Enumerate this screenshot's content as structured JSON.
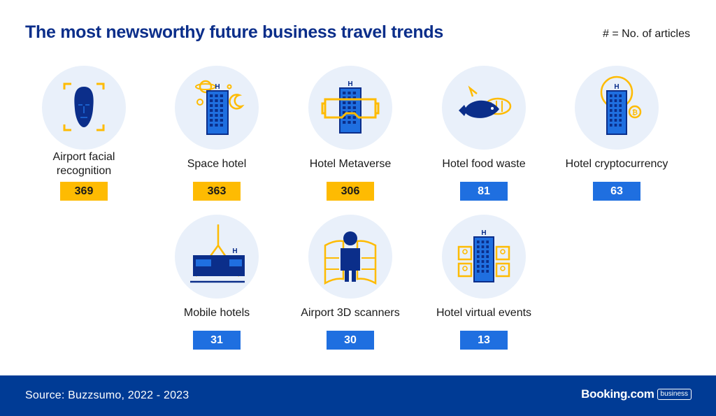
{
  "header": {
    "title": "The most newsworthy future business travel trends",
    "legend": "# = No. of articles"
  },
  "footer": {
    "source": "Source: Buzzsumo, 2022 - 2023",
    "brand_name": "Booking.com",
    "brand_tag": "business"
  },
  "colors": {
    "title": "#0b2e8a",
    "icon_dark": "#0b2e8a",
    "icon_blue": "#1f6fe0",
    "accent_yellow": "#febb02",
    "circle_bg": "#e9f0fa",
    "footer_bg": "#003b95"
  },
  "chart_data": {
    "type": "table",
    "categories": [
      "Airport facial recognition",
      "Space hotel",
      "Hotel Metaverse",
      "Hotel food waste",
      "Hotel cryptocurrency",
      "Mobile hotels",
      "Airport 3D scanners",
      "Hotel virtual events"
    ],
    "values": [
      369,
      363,
      306,
      81,
      63,
      31,
      30,
      13
    ],
    "highlight_top": 3,
    "icons": [
      "face-scan-icon",
      "space-hotel-icon",
      "vr-headset-hotel-icon",
      "fish-food-icon",
      "crypto-hotel-icon",
      "crane-container-icon",
      "body-scanner-icon",
      "virtual-event-hotel-icon"
    ]
  }
}
